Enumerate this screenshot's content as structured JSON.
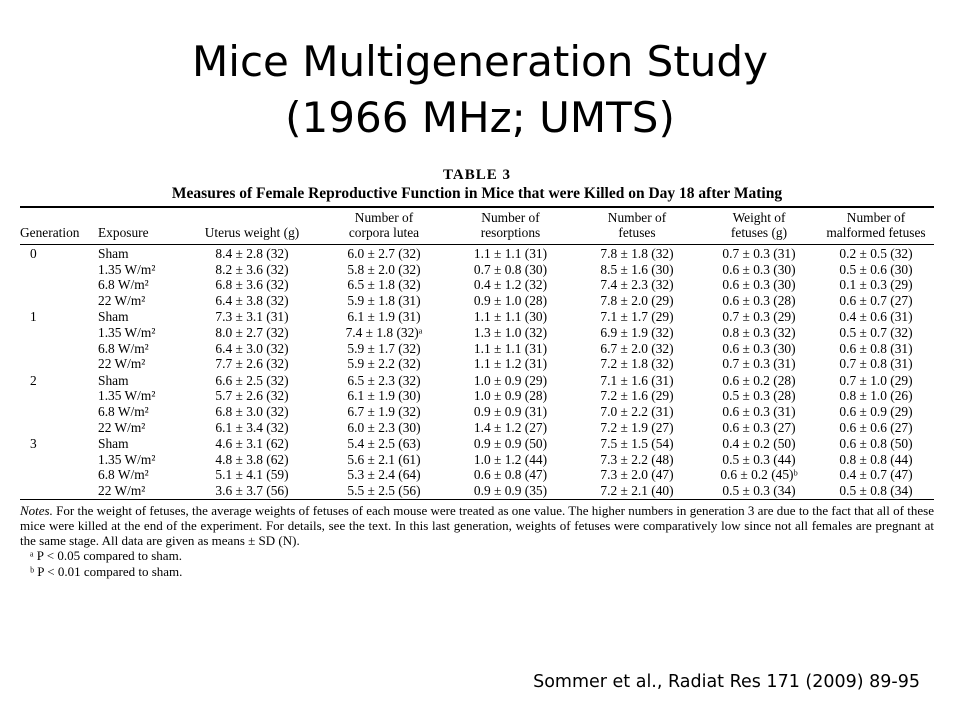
{
  "slide": {
    "title_line1": "Mice Multigeneration Study",
    "title_line2": "(1966 MHz; UMTS)"
  },
  "table": {
    "label": "TABLE 3",
    "caption": "Measures of Female Reproductive Function in Mice that were Killed on Day 18 after Mating",
    "headers": [
      [
        "Generation"
      ],
      [
        "Exposure"
      ],
      [
        "Uterus weight (g)"
      ],
      [
        "Number of",
        "corpora lutea"
      ],
      [
        "Number of",
        "resorptions"
      ],
      [
        "Number of",
        "fetuses"
      ],
      [
        "Weight of",
        "fetuses (g)"
      ],
      [
        "Number of",
        "malformed fetuses"
      ]
    ],
    "exposure_levels": [
      "Sham",
      "1.35 W/m²",
      "6.8 W/m²",
      "22 W/m²"
    ],
    "groups": [
      {
        "generation": "0",
        "rows": [
          [
            "8.4 ± 2.8 (32)",
            "6.0 ± 2.7 (32)",
            "1.1 ± 1.1 (31)",
            "7.8 ± 1.8 (32)",
            "0.7 ± 0.3 (31)",
            "0.2 ± 0.5 (32)"
          ],
          [
            "8.2 ± 3.6 (32)",
            "5.8 ± 2.0 (32)",
            "0.7 ± 0.8 (30)",
            "8.5 ± 1.6 (30)",
            "0.6 ± 0.3 (30)",
            "0.5 ± 0.6 (30)"
          ],
          [
            "6.8 ± 3.6 (32)",
            "6.5 ± 1.8 (32)",
            "0.4 ± 1.2 (32)",
            "7.4 ± 2.3 (32)",
            "0.6 ± 0.3 (30)",
            "0.1 ± 0.3 (29)"
          ],
          [
            "6.4 ± 3.8 (32)",
            "5.9 ± 1.8 (31)",
            "0.9 ± 1.0 (28)",
            "7.8 ± 2.0 (29)",
            "0.6 ± 0.3 (28)",
            "0.6 ± 0.7 (27)"
          ]
        ]
      },
      {
        "generation": "1",
        "rows": [
          [
            "7.3 ± 3.1 (31)",
            "6.1 ± 1.9 (31)",
            "1.1 ± 1.1 (30)",
            "7.1 ± 1.7 (29)",
            "0.7 ± 0.3 (29)",
            "0.4 ± 0.6 (31)"
          ],
          [
            "8.0 ± 2.7 (32)",
            "7.4 ± 1.8 (32)ᵃ",
            "1.3 ± 1.0 (32)",
            "6.9 ± 1.9 (32)",
            "0.8 ± 0.3 (32)",
            "0.5 ± 0.7 (32)"
          ],
          [
            "6.4 ± 3.0 (32)",
            "5.9 ± 1.7 (32)",
            "1.1 ± 1.1 (31)",
            "6.7 ± 2.0 (32)",
            "0.6 ± 0.3 (30)",
            "0.6 ± 0.8 (31)"
          ],
          [
            "7.7 ± 2.6 (32)",
            "5.9 ± 2.2 (32)",
            "1.1 ± 1.2 (31)",
            "7.2 ± 1.8 (32)",
            "0.7 ± 0.3 (31)",
            "0.7 ± 0.8 (31)"
          ]
        ]
      },
      {
        "generation": "2",
        "rows": [
          [
            "6.6 ± 2.5 (32)",
            "6.5 ± 2.3 (32)",
            "1.0 ± 0.9 (29)",
            "7.1 ± 1.6 (31)",
            "0.6 ± 0.2 (28)",
            "0.7 ± 1.0 (29)"
          ],
          [
            "5.7 ± 2.6 (32)",
            "6.1 ± 1.9 (30)",
            "1.0 ± 0.9 (28)",
            "7.2 ± 1.6 (29)",
            "0.5 ± 0.3 (28)",
            "0.8 ± 1.0 (26)"
          ],
          [
            "6.8 ± 3.0 (32)",
            "6.7 ± 1.9 (32)",
            "0.9 ± 0.9 (31)",
            "7.0 ± 2.2 (31)",
            "0.6 ± 0.3 (31)",
            "0.6 ± 0.9 (29)"
          ],
          [
            "6.1 ± 3.4 (32)",
            "6.0 ± 2.3 (30)",
            "1.4 ± 1.2 (27)",
            "7.2 ± 1.9 (27)",
            "0.6 ± 0.3 (27)",
            "0.6 ± 0.6 (27)"
          ]
        ]
      },
      {
        "generation": "3",
        "rows": [
          [
            "4.6 ± 3.1 (62)",
            "5.4 ± 2.5 (63)",
            "0.9 ± 0.9 (50)",
            "7.5 ± 1.5 (54)",
            "0.4 ± 0.2 (50)",
            "0.6 ± 0.8 (50)"
          ],
          [
            "4.8 ± 3.8 (62)",
            "5.6 ± 2.1 (61)",
            "1.0 ± 1.2 (44)",
            "7.3 ± 2.2 (48)",
            "0.5 ± 0.3 (44)",
            "0.8 ± 0.8 (44)"
          ],
          [
            "5.1 ± 4.1 (59)",
            "5.3 ± 2.4 (64)",
            "0.6 ± 0.8 (47)",
            "7.3 ± 2.0 (47)",
            "0.6 ± 0.2 (45)ᵇ",
            "0.4 ± 0.7 (47)"
          ],
          [
            "3.6 ± 3.7 (56)",
            "5.5 ± 2.5 (56)",
            "0.9 ± 0.9 (35)",
            "7.2 ± 2.1 (40)",
            "0.5 ± 0.3 (34)",
            "0.5 ± 0.8 (34)"
          ]
        ]
      }
    ],
    "notes": {
      "label": "Notes.",
      "text": " For the weight of fetuses, the average weights of fetuses of each mouse were treated as one value. The higher numbers in generation 3 are due to the fact that all of these mice were killed at the end of the experiment. For details, see the text. In this last generation, weights of fetuses were comparatively low since not all females are pregnant at the same stage. All data are given as means ± SD (N).",
      "footnotes": [
        "ᵃ P < 0.05 compared to sham.",
        "ᵇ P < 0.01 compared to sham."
      ]
    }
  },
  "citation": "Sommer et al., Radiat Res 171 (2009) 89-95"
}
